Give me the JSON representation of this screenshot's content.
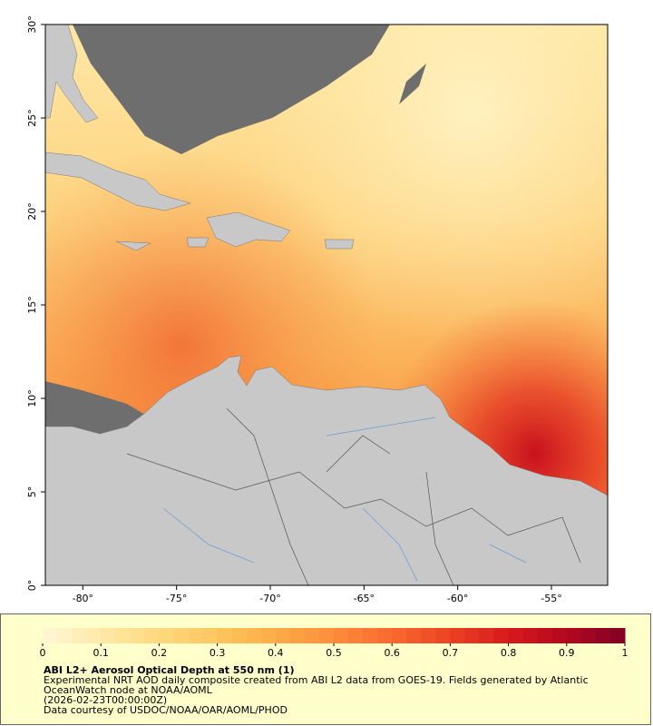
{
  "map": {
    "xlim": [
      -82,
      -52
    ],
    "ylim": [
      0,
      30
    ],
    "xticks": [
      {
        "value": -80,
        "label": "-80°"
      },
      {
        "value": -75,
        "label": "-75°"
      },
      {
        "value": -70,
        "label": "-70°"
      },
      {
        "value": -65,
        "label": "-65°"
      },
      {
        "value": -60,
        "label": "-60°"
      },
      {
        "value": -55,
        "label": "-55°"
      }
    ],
    "yticks": [
      {
        "value": 0,
        "label": "0°"
      },
      {
        "value": 5,
        "label": "5°"
      },
      {
        "value": 10,
        "label": "10°"
      },
      {
        "value": 15,
        "label": "15°"
      },
      {
        "value": 20,
        "label": "20°"
      },
      {
        "value": 25,
        "label": "25°"
      },
      {
        "value": 30,
        "label": "30°"
      }
    ]
  },
  "colorbar": {
    "range": [
      0,
      1
    ],
    "ticks": [
      0,
      0.1,
      0.2,
      0.3,
      0.4,
      0.5,
      0.6,
      0.7,
      0.8,
      0.9,
      1
    ],
    "colors": [
      "#fff7d6",
      "#ffe9a8",
      "#fed97e",
      "#fec55e",
      "#fdac47",
      "#fd8d3c",
      "#f86a2e",
      "#ec4222",
      "#d7191c",
      "#b4081f",
      "#800026"
    ]
  },
  "caption": {
    "title": "ABI L2+ Aerosol Optical Depth at 550 nm (1)",
    "description": "Experimental NRT AOD daily composite created from ABI L2 data from GOES-19. Fields generated by Atlantic OceanWatch node at NOAA/AOML",
    "time": "(2026-02-23T00:00:00Z)",
    "credit": "Data courtesy of USDOC/NOAA/OAR/AOML/PHOD"
  }
}
